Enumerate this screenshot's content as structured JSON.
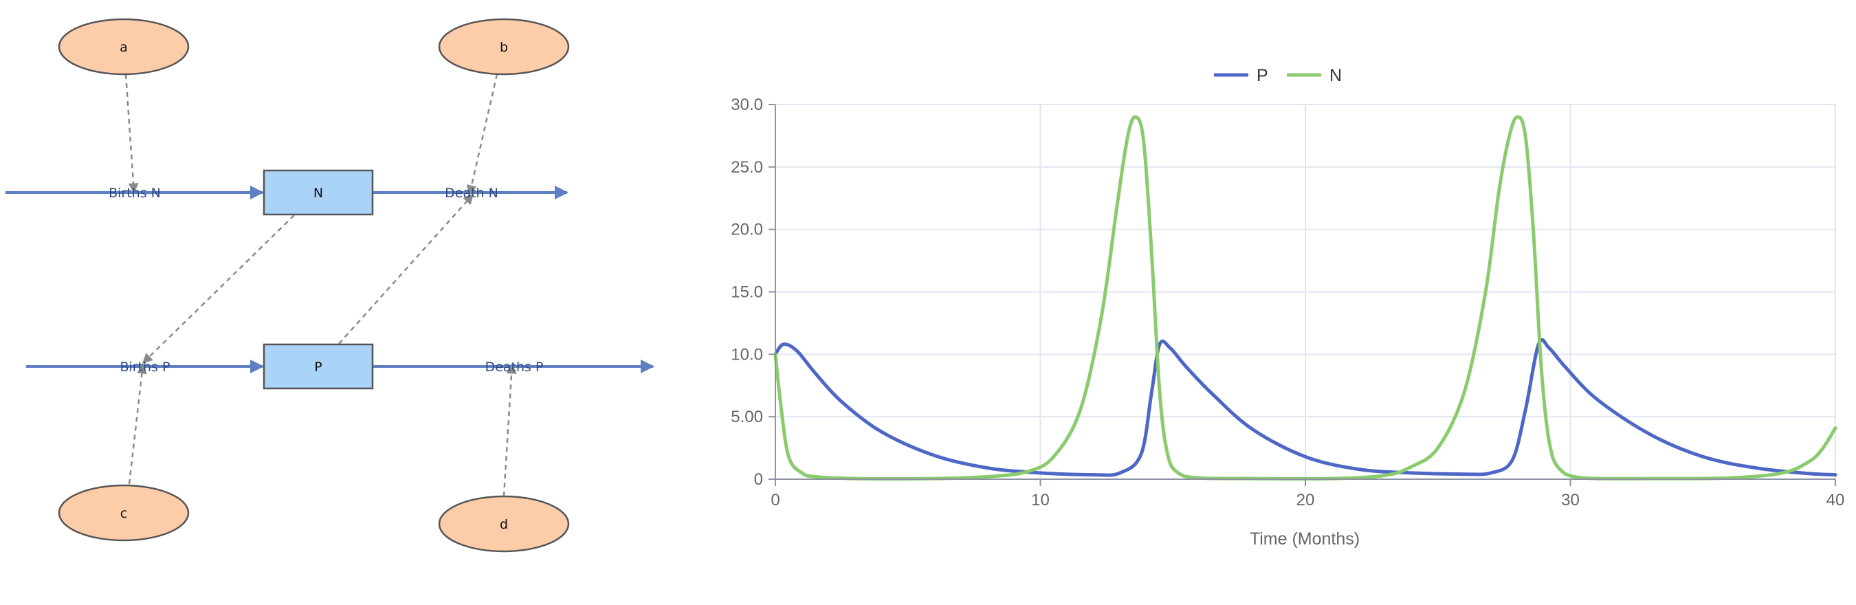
{
  "diagram": {
    "parameters": [
      "a",
      "b",
      "c",
      "d"
    ],
    "stocks": [
      "N",
      "P"
    ],
    "flows": [
      "Births N",
      "Death N",
      "Births P",
      "Deaths P"
    ],
    "colors": {
      "parameter_fill": "#fdcda9",
      "stock_fill": "#a9d4f8",
      "flow": "#5e7fc1",
      "link": "#8a8a8a"
    }
  },
  "chart_data": {
    "type": "line",
    "xlabel": "Time (Months)",
    "ylabel": "",
    "xlim": [
      0,
      40
    ],
    "ylim": [
      0,
      30
    ],
    "x_ticks": [
      "0",
      "10",
      "20",
      "30",
      "40"
    ],
    "y_ticks": [
      "0",
      "5.00",
      "10.0",
      "15.0",
      "20.0",
      "25.0",
      "30.0"
    ],
    "legend_position": "top-center",
    "grid": true,
    "series": [
      {
        "name": "P",
        "color": "#4e67c6",
        "x": [
          0,
          0.3,
          0.8,
          1.5,
          2.5,
          4,
          6,
          8,
          10,
          12,
          13,
          13.8,
          14.2,
          14.5,
          14.9,
          15.5,
          16.5,
          18,
          20,
          22,
          24,
          26,
          27,
          27.8,
          28.3,
          28.8,
          29.2,
          29.8,
          31,
          33,
          35,
          37,
          39,
          40
        ],
        "y": [
          10.0,
          10.8,
          10.3,
          8.5,
          6.2,
          3.8,
          1.9,
          0.9,
          0.5,
          0.35,
          0.5,
          2.0,
          7.0,
          10.8,
          10.5,
          9.0,
          6.8,
          4.0,
          1.8,
          0.8,
          0.5,
          0.4,
          0.5,
          1.5,
          5.5,
          10.8,
          10.5,
          9.0,
          6.4,
          3.6,
          1.8,
          0.9,
          0.45,
          0.35
        ]
      },
      {
        "name": "N",
        "color": "#8acb6e",
        "x": [
          0,
          0.2,
          0.5,
          1,
          1.5,
          3,
          6,
          8,
          9.5,
          10.5,
          11.5,
          12.3,
          12.9,
          13.3,
          13.6,
          13.9,
          14.2,
          14.5,
          14.8,
          15.2,
          16,
          18,
          21,
          23,
          24,
          25,
          26,
          26.8,
          27.3,
          27.7,
          28,
          28.3,
          28.6,
          28.9,
          29.2,
          29.6,
          30.5,
          33,
          36,
          38,
          39,
          39.5,
          40
        ],
        "y": [
          10.0,
          6.0,
          1.8,
          0.5,
          0.2,
          0.05,
          0.05,
          0.2,
          0.6,
          1.8,
          5.5,
          13.0,
          22.0,
          27.5,
          29.0,
          27.0,
          18.0,
          7.0,
          2.0,
          0.5,
          0.1,
          0.05,
          0.05,
          0.3,
          1.0,
          2.5,
          7.0,
          15.0,
          23.0,
          27.5,
          29.0,
          27.5,
          20.0,
          9.0,
          3.0,
          0.8,
          0.1,
          0.05,
          0.1,
          0.5,
          1.4,
          2.4,
          4.1
        ]
      }
    ]
  }
}
